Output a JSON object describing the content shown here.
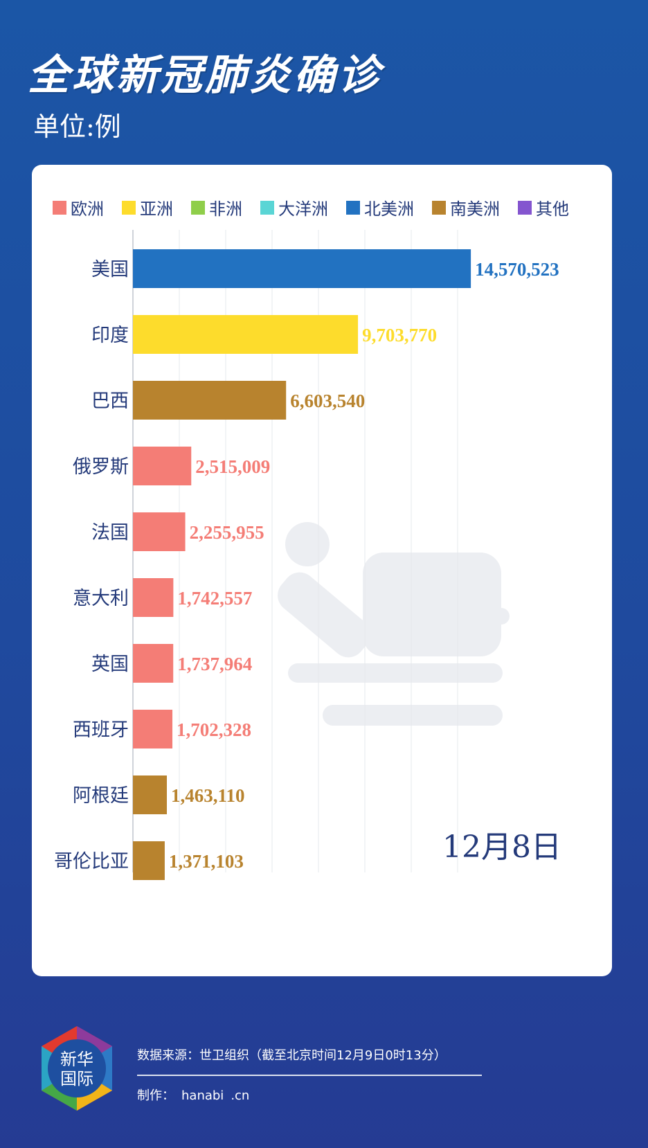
{
  "title": "全球新冠肺炎确诊",
  "unit": "单位:例",
  "legend": [
    {
      "label": "欧洲",
      "color": "#f47d76"
    },
    {
      "label": "亚洲",
      "color": "#fddc2c"
    },
    {
      "label": "非洲",
      "color": "#8fce4a"
    },
    {
      "label": "大洋洲",
      "color": "#5ad5d5"
    },
    {
      "label": "北美洲",
      "color": "#2272c1"
    },
    {
      "label": "南美洲",
      "color": "#b8832e"
    },
    {
      "label": "其他",
      "color": "#8455cf"
    }
  ],
  "chart_data": {
    "type": "bar",
    "orientation": "horizontal",
    "date_label": "12月8日",
    "categories": [
      "美国",
      "印度",
      "巴西",
      "俄罗斯",
      "法国",
      "意大利",
      "英国",
      "西班牙",
      "阿根廷",
      "哥伦比亚"
    ],
    "values": [
      14570523,
      9703770,
      6603540,
      2515009,
      2255955,
      1742557,
      1737964,
      1702328,
      1463110,
      1371103
    ],
    "value_labels": [
      "14,570,523",
      "9,703,770",
      "6,603,540",
      "2,515,009",
      "2,255,955",
      "1,742,557",
      "1,737,964",
      "1,702,328",
      "1,463,110",
      "1,371,103"
    ],
    "regions": [
      "北美洲",
      "亚洲",
      "南美洲",
      "欧洲",
      "欧洲",
      "欧洲",
      "欧洲",
      "欧洲",
      "南美洲",
      "南美洲"
    ],
    "xlim": [
      0,
      20000000
    ],
    "grid": true
  },
  "footer": {
    "logo_text_1": "新华",
    "logo_text_2": "国际",
    "source": "数据来源：世卫组织（截至北京时间12月9日0时13分）",
    "maker_label": "制作：",
    "maker_name_1": "hanabi",
    "maker_name_2": ".cn"
  }
}
